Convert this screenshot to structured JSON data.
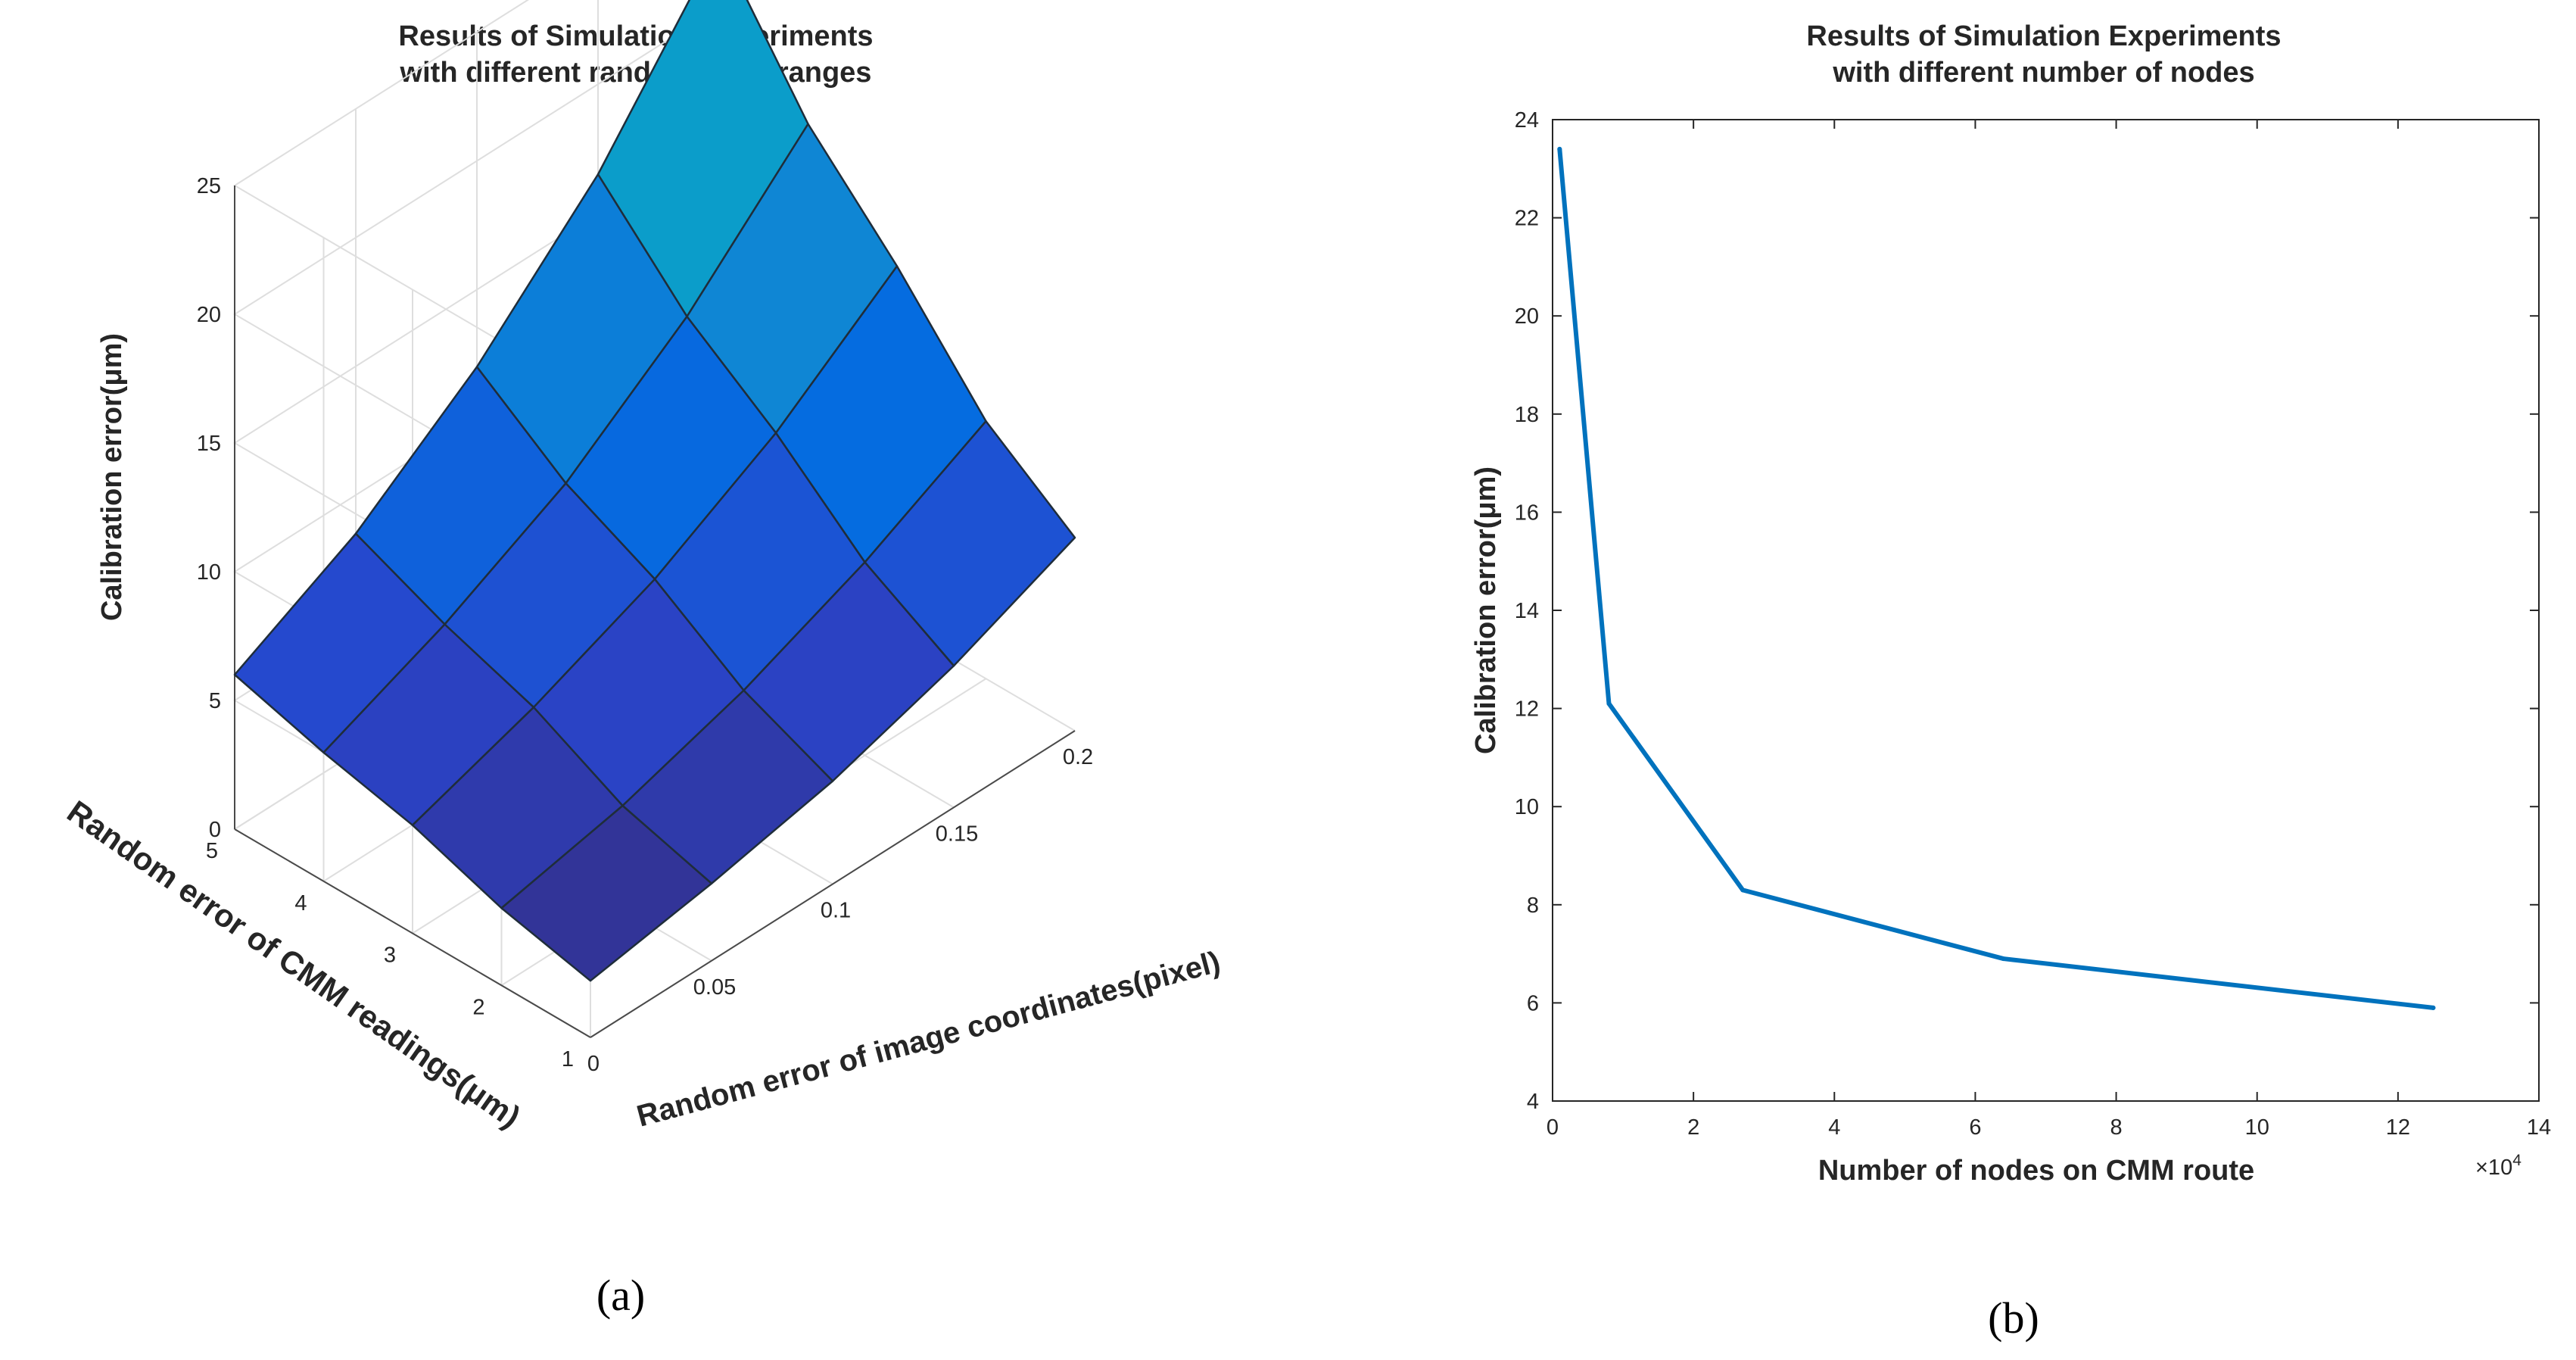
{
  "chart_data": [
    {
      "type": "surface",
      "panel_label": "(a)",
      "title_lines": [
        "Results of Simulation Experiments",
        "with different random error ranges"
      ],
      "xlabel": "Random error of image coordinates(pixel)",
      "ylabel": "Random error of CMM readings(μm)",
      "zlabel": "Calibration error(μm)",
      "x_values": [
        0,
        0.05,
        0.1,
        0.15,
        0.2
      ],
      "y_values": [
        1,
        2,
        3,
        4,
        5
      ],
      "x_ticks": [
        "0",
        "0.05",
        "0.1",
        "0.15",
        "0.2"
      ],
      "y_ticks": [
        "1",
        "2",
        "3",
        "4",
        "5"
      ],
      "z_ticks": [
        "0",
        "5",
        "10",
        "15",
        "20",
        "25"
      ],
      "zlim": [
        0,
        25
      ],
      "z": [
        [
          2.2,
          3.0,
          4.0,
          5.5,
          7.5
        ],
        [
          3.0,
          4.0,
          5.5,
          7.5,
          10.0
        ],
        [
          4.2,
          5.8,
          7.8,
          10.5,
          14.0
        ],
        [
          5.0,
          7.0,
          9.5,
          13.0,
          17.5
        ],
        [
          6.0,
          8.5,
          12.0,
          16.5,
          22.5
        ]
      ],
      "grid": true,
      "colormap": "parula"
    },
    {
      "type": "line",
      "panel_label": "(b)",
      "title_lines": [
        "Results of Simulation Experiments",
        "with different number of nodes"
      ],
      "xlabel": "Number of nodes on CMM route",
      "ylabel": "Calibration error(μm)",
      "x_multiplier": "×10",
      "x_multiplier_exp": "4",
      "xlim": [
        0,
        14
      ],
      "ylim": [
        4,
        24
      ],
      "x_ticks": [
        "0",
        "2",
        "4",
        "6",
        "8",
        "10",
        "12",
        "14"
      ],
      "y_ticks": [
        "4",
        "6",
        "8",
        "10",
        "12",
        "14",
        "16",
        "18",
        "20",
        "22",
        "24"
      ],
      "series": [
        {
          "name": "Calibration error",
          "color": "#0072BD",
          "x": [
            0.1,
            0.8,
            2.7,
            6.4,
            12.5
          ],
          "y": [
            23.4,
            12.1,
            8.3,
            6.9,
            5.9
          ]
        }
      ]
    }
  ]
}
